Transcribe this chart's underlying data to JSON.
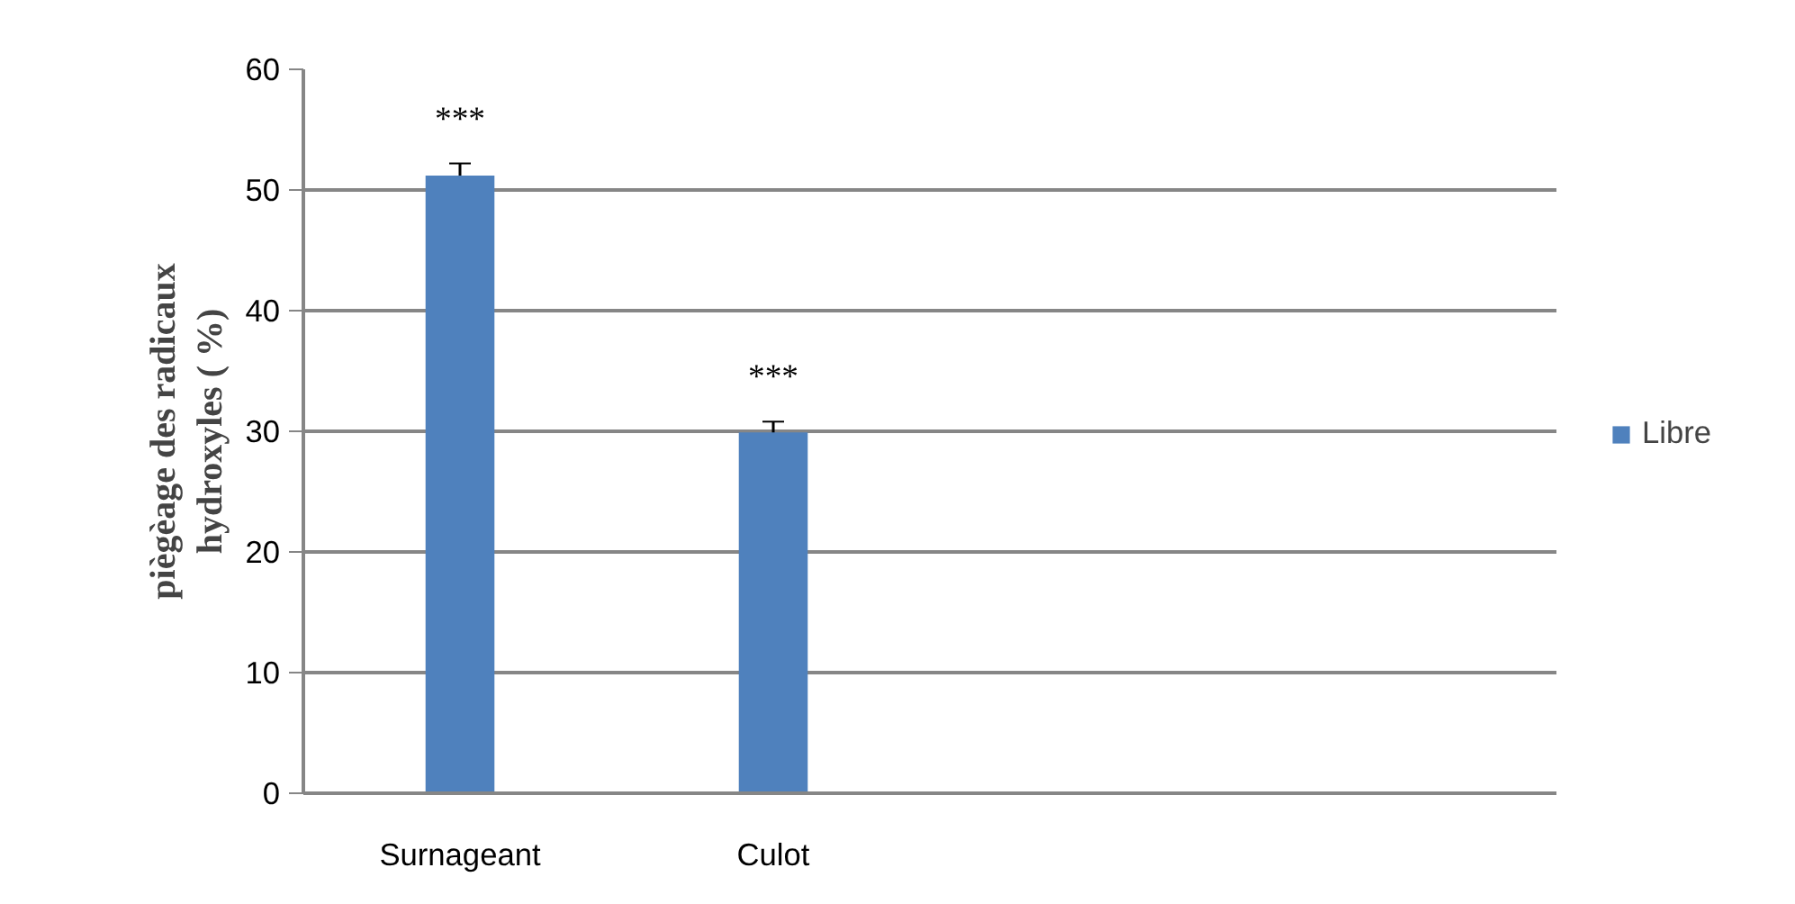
{
  "chart_data": {
    "type": "bar",
    "ylabel": "piègèage des radicaux\nhydroxyles ( %)",
    "categories": [
      "Surnageant",
      "Culot",
      null,
      null
    ],
    "series": [
      {
        "name": "Libre",
        "color": "#4f81bd",
        "values": [
          51.2,
          29.9,
          null,
          null
        ],
        "errors": [
          1.0,
          0.9,
          null,
          null
        ]
      }
    ],
    "annotations": [
      "***",
      "***"
    ],
    "ylim": [
      0,
      60
    ],
    "yticks": [
      0,
      10,
      20,
      30,
      40,
      50,
      60
    ],
    "grid": "y",
    "legend": "right"
  }
}
